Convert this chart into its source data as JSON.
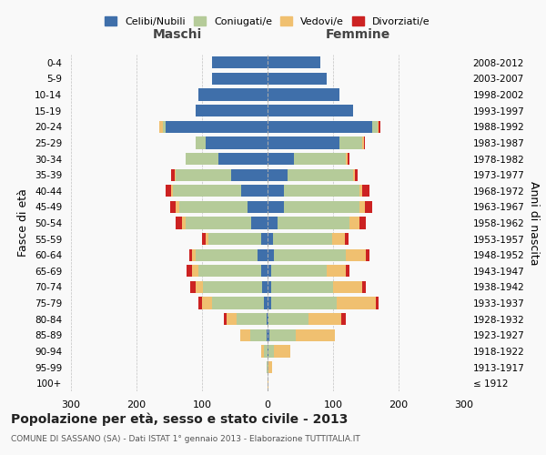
{
  "age_groups": [
    "100+",
    "95-99",
    "90-94",
    "85-89",
    "80-84",
    "75-79",
    "70-74",
    "65-69",
    "60-64",
    "55-59",
    "50-54",
    "45-49",
    "40-44",
    "35-39",
    "30-34",
    "25-29",
    "20-24",
    "15-19",
    "10-14",
    "5-9",
    "0-4"
  ],
  "birth_years": [
    "≤ 1912",
    "1913-1917",
    "1918-1922",
    "1923-1927",
    "1928-1932",
    "1933-1937",
    "1938-1942",
    "1943-1947",
    "1948-1952",
    "1953-1957",
    "1958-1962",
    "1963-1967",
    "1968-1972",
    "1973-1977",
    "1978-1982",
    "1983-1987",
    "1988-1992",
    "1993-1997",
    "1998-2002",
    "2003-2007",
    "2008-2012"
  ],
  "colors": {
    "celibe": "#3f6faa",
    "coniugato": "#b5cb99",
    "vedovo": "#f0c070",
    "divorziato": "#cc2222"
  },
  "maschi": {
    "celibe": [
      0,
      0,
      0,
      2,
      2,
      5,
      8,
      10,
      15,
      10,
      25,
      30,
      40,
      55,
      75,
      95,
      155,
      110,
      105,
      85,
      85
    ],
    "coniugato": [
      0,
      2,
      5,
      25,
      45,
      80,
      90,
      95,
      95,
      80,
      100,
      105,
      105,
      85,
      50,
      15,
      5,
      0,
      0,
      0,
      0
    ],
    "vedovo": [
      0,
      0,
      5,
      15,
      15,
      15,
      12,
      10,
      5,
      5,
      5,
      5,
      2,
      2,
      0,
      0,
      5,
      0,
      0,
      0,
      0
    ],
    "divorziato": [
      0,
      0,
      0,
      0,
      5,
      5,
      8,
      8,
      5,
      5,
      10,
      8,
      8,
      5,
      0,
      0,
      0,
      0,
      0,
      0,
      0
    ]
  },
  "femmine": {
    "celibe": [
      0,
      0,
      2,
      3,
      2,
      5,
      5,
      5,
      10,
      8,
      15,
      25,
      25,
      30,
      40,
      110,
      160,
      130,
      110,
      90,
      80
    ],
    "coniugato": [
      0,
      2,
      8,
      40,
      60,
      100,
      95,
      85,
      110,
      90,
      110,
      115,
      115,
      100,
      80,
      35,
      8,
      0,
      0,
      0,
      0
    ],
    "vedovo": [
      2,
      5,
      25,
      60,
      50,
      60,
      45,
      30,
      30,
      20,
      15,
      8,
      5,
      3,
      2,
      2,
      2,
      0,
      0,
      0,
      0
    ],
    "divorziato": [
      0,
      0,
      0,
      0,
      8,
      5,
      5,
      5,
      5,
      5,
      10,
      12,
      10,
      5,
      3,
      2,
      2,
      0,
      0,
      0,
      0
    ]
  },
  "title": "Popolazione per età, sesso e stato civile - 2013",
  "subtitle": "COMUNE DI SASSANO (SA) - Dati ISTAT 1° gennaio 2013 - Elaborazione TUTTITALIA.IT",
  "xlabel_left": "Maschi",
  "xlabel_right": "Femmine",
  "ylabel_left": "Fasce di età",
  "ylabel_right": "Anni di nascita",
  "xlim": 300,
  "background_color": "#f9f9f9",
  "legend_labels": [
    "Celibi/Nubili",
    "Coniugati/e",
    "Vedovi/e",
    "Divorziati/e"
  ]
}
